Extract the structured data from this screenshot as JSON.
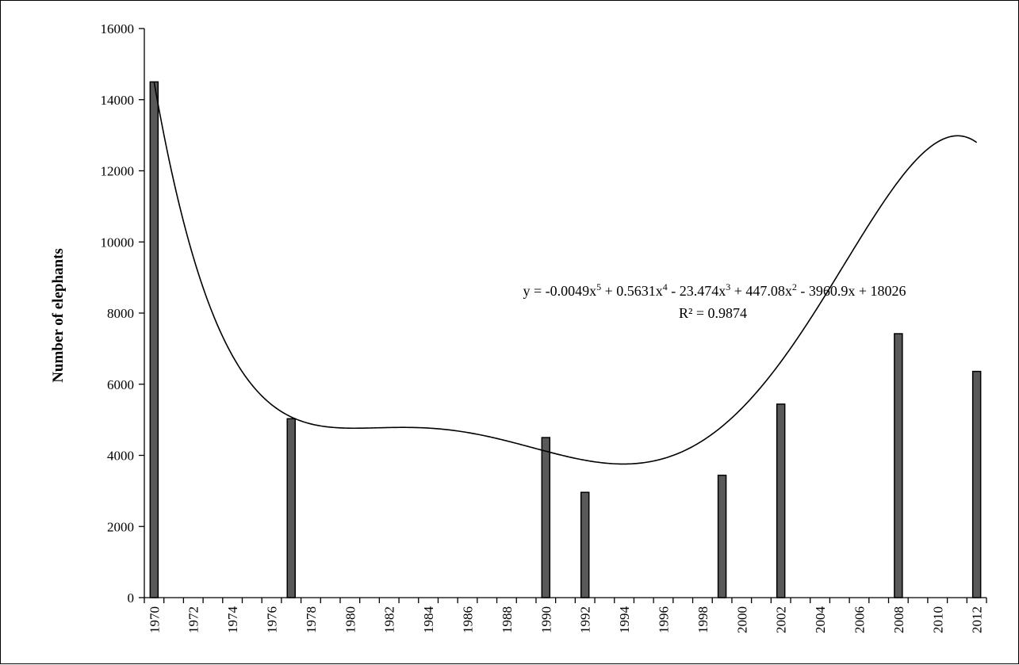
{
  "chart_data": {
    "type": "bar",
    "ylabel": "Number of elephants",
    "xlabel": "",
    "ylim": [
      0,
      16000
    ],
    "y_ticks": [
      "0",
      "2000",
      "4000",
      "6000",
      "8000",
      "10000",
      "12000",
      "14000",
      "16000"
    ],
    "x_range": [
      1970,
      2012
    ],
    "x_tick_labels": [
      "1970",
      "1972",
      "1974",
      "1976",
      "1978",
      "1980",
      "1982",
      "1984",
      "1986",
      "1988",
      "1990",
      "1992",
      "1994",
      "1996",
      "1998",
      "2000",
      "2002",
      "2004",
      "2006",
      "2008",
      "2010",
      "2012"
    ],
    "x_tick_label_rotation": "vertical",
    "grid": false,
    "legend": "none",
    "bar_color": "#595959",
    "points": [
      {
        "x": 1970,
        "y": 14500
      },
      {
        "x": 1977,
        "y": 5030
      },
      {
        "x": 1990,
        "y": 4500
      },
      {
        "x": 1992,
        "y": 2960
      },
      {
        "x": 1999,
        "y": 3440
      },
      {
        "x": 2002,
        "y": 5440
      },
      {
        "x": 2008,
        "y": 7420
      },
      {
        "x": 2012,
        "y": 6360
      }
    ],
    "trendline": {
      "type": "polynomial",
      "order": 5,
      "coefficients": [
        -0.0049,
        0.5631,
        -23.474,
        447.08,
        -3960.9,
        18026
      ],
      "x_variable": "year - 1969",
      "equation_label": {
        "prefix": "y = -0.0049x",
        "exp5": "5",
        "t4": " + 0.5631x",
        "exp4": "4",
        "t3": " - 23.474x",
        "exp3": "3",
        "t2": " + 447.08x",
        "exp2": "2",
        "tail": " - 3960.9x + 18026"
      },
      "r2_label": "R² = 0.9874"
    }
  }
}
